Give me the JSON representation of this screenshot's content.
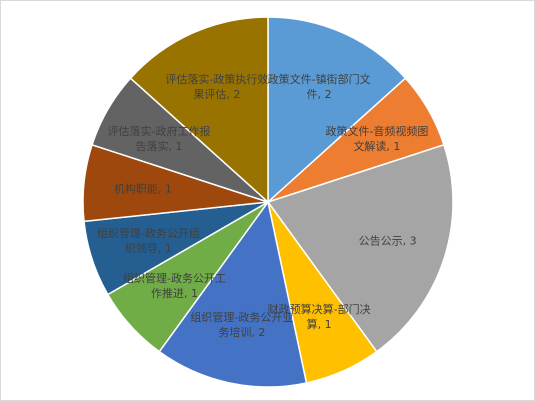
{
  "chart_data": {
    "type": "pie",
    "value_labels": [
      "政策文件-镇街部门文件, 2",
      "政策文件-音频视频图文解读, 1",
      "公告公示, 3",
      "财政预算决算-部门决算, 1",
      "组织管理-政务公开业务培训, 2",
      "组织管理-政务公开工作推进, 1",
      "组织管理-政务公开组织领导, 1",
      "机构职能, 1",
      "评估落实-政府工作报告落实, 1",
      "评估落实-政策执行效果评估, 2"
    ],
    "values": [
      2,
      1,
      3,
      1,
      2,
      1,
      1,
      1,
      1,
      2
    ],
    "colors": [
      "#5b9bd5",
      "#ed7d31",
      "#a5a5a5",
      "#ffc000",
      "#4472c4",
      "#70ad47",
      "#255e91",
      "#9e480e",
      "#636363",
      "#997300"
    ]
  }
}
